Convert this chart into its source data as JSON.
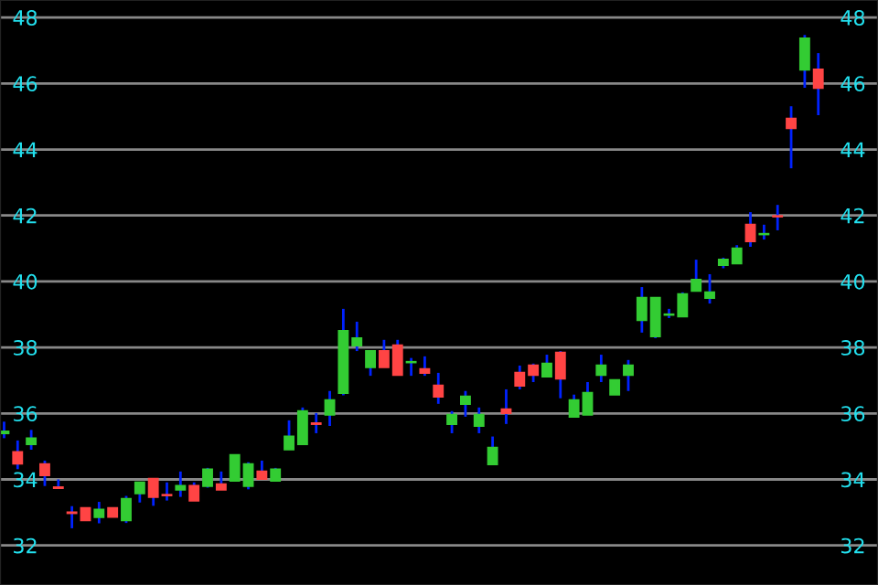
{
  "chart_data": {
    "type": "candlestick",
    "categories": [
      null,
      null,
      null,
      null,
      null,
      null,
      null,
      null,
      null,
      null,
      null,
      null,
      null,
      null,
      null,
      null,
      null,
      null,
      null,
      null,
      null,
      null,
      null,
      null,
      null,
      null,
      null,
      null,
      null,
      null,
      null,
      null,
      null,
      null,
      null,
      null,
      null,
      null,
      null,
      null,
      null,
      null,
      null,
      null,
      null,
      null,
      null,
      null,
      null,
      null,
      null,
      null,
      null,
      null,
      null,
      null,
      null,
      null,
      null,
      null,
      null
    ],
    "ohlc": [
      [
        35.4,
        35.75,
        35.25,
        35.45
      ],
      [
        34.83,
        35.18,
        34.31,
        34.48
      ],
      [
        35.07,
        35.5,
        34.9,
        35.24
      ],
      [
        34.46,
        34.57,
        33.8,
        34.13
      ],
      [
        33.76,
        34.0,
        33.74,
        33.74
      ],
      [
        33.0,
        33.19,
        32.52,
        32.98
      ],
      [
        33.13,
        33.13,
        32.76,
        32.76
      ],
      [
        32.86,
        33.32,
        32.67,
        33.08
      ],
      [
        33.13,
        33.13,
        32.87,
        32.87
      ],
      [
        32.76,
        33.5,
        32.68,
        33.41
      ],
      [
        33.58,
        33.91,
        33.3,
        33.91
      ],
      [
        34.02,
        34.02,
        33.2,
        33.47
      ],
      [
        33.53,
        33.91,
        33.36,
        33.52
      ],
      [
        33.69,
        34.24,
        33.47,
        33.8
      ],
      [
        33.8,
        33.91,
        33.36,
        33.36
      ],
      [
        33.8,
        34.35,
        33.75,
        34.3
      ],
      [
        33.85,
        34.24,
        33.69,
        33.69
      ],
      [
        33.96,
        34.74,
        33.96,
        34.74
      ],
      [
        33.8,
        34.52,
        33.7,
        34.46
      ],
      [
        34.24,
        34.57,
        34.02,
        34.02
      ],
      [
        33.96,
        34.35,
        33.96,
        34.3
      ],
      [
        34.91,
        35.79,
        34.91,
        35.3
      ],
      [
        35.07,
        36.18,
        35.07,
        36.07
      ],
      [
        35.7,
        36.01,
        35.4,
        35.68
      ],
      [
        35.96,
        36.68,
        35.62,
        36.4
      ],
      [
        36.62,
        39.17,
        36.55,
        38.5
      ],
      [
        38.06,
        38.78,
        37.89,
        38.28
      ],
      [
        37.4,
        37.89,
        37.14,
        37.89
      ],
      [
        37.89,
        38.23,
        37.4,
        37.4
      ],
      [
        38.06,
        38.23,
        37.17,
        37.17
      ],
      [
        37.55,
        37.68,
        37.14,
        37.56
      ],
      [
        37.34,
        37.73,
        37.14,
        37.23
      ],
      [
        36.84,
        37.23,
        36.29,
        36.51
      ],
      [
        35.68,
        36.07,
        35.4,
        35.96
      ],
      [
        36.29,
        36.68,
        35.9,
        36.51
      ],
      [
        35.62,
        36.18,
        35.4,
        35.96
      ],
      [
        34.46,
        35.3,
        34.46,
        34.96
      ],
      [
        36.12,
        36.73,
        35.68,
        36.01
      ],
      [
        37.23,
        37.45,
        36.73,
        36.84
      ],
      [
        37.45,
        37.51,
        36.95,
        37.17
      ],
      [
        37.12,
        37.78,
        37.12,
        37.51
      ],
      [
        37.84,
        37.89,
        36.46,
        37.06
      ],
      [
        35.9,
        36.57,
        35.9,
        36.4
      ],
      [
        35.96,
        36.95,
        35.96,
        36.62
      ],
      [
        37.17,
        37.78,
        36.95,
        37.45
      ],
      [
        36.57,
        37.01,
        36.57,
        37.01
      ],
      [
        37.17,
        37.62,
        36.68,
        37.45
      ],
      [
        38.83,
        39.83,
        38.45,
        39.5
      ],
      [
        38.34,
        39.5,
        38.28,
        39.5
      ],
      [
        38.99,
        39.17,
        38.89,
        39.0
      ],
      [
        38.94,
        39.67,
        38.94,
        39.61
      ],
      [
        39.72,
        40.66,
        39.72,
        40.05
      ],
      [
        39.5,
        40.22,
        39.33,
        39.67
      ],
      [
        40.5,
        40.72,
        40.4,
        40.66
      ],
      [
        40.55,
        41.1,
        40.55,
        41.0
      ],
      [
        41.72,
        42.1,
        41.05,
        41.22
      ],
      [
        41.43,
        41.72,
        41.27,
        41.44
      ],
      [
        41.98,
        42.32,
        41.55,
        41.97
      ],
      [
        44.93,
        45.31,
        43.43,
        44.65
      ],
      [
        46.42,
        47.47,
        45.87,
        47.36
      ],
      [
        46.42,
        46.92,
        45.04,
        45.87
      ]
    ],
    "colors": [
      "#33cc33",
      "#ff4444",
      "#33cc33",
      "#ff4444",
      "#ff4444",
      "#ff4444",
      "#ff4444",
      "#33cc33",
      "#ff4444",
      "#33cc33",
      "#33cc33",
      "#ff4444",
      "#ff4444",
      "#33cc33",
      "#ff4444",
      "#33cc33",
      "#ff4444",
      "#33cc33",
      "#33cc33",
      "#ff4444",
      "#33cc33",
      "#33cc33",
      "#33cc33",
      "#ff4444",
      "#33cc33",
      "#33cc33",
      "#33cc33",
      "#33cc33",
      "#ff4444",
      "#ff4444",
      "#33cc33",
      "#ff4444",
      "#ff4444",
      "#33cc33",
      "#33cc33",
      "#33cc33",
      "#33cc33",
      "#ff4444",
      "#ff4444",
      "#ff4444",
      "#33cc33",
      "#ff4444",
      "#33cc33",
      "#33cc33",
      "#33cc33",
      "#33cc33",
      "#33cc33",
      "#33cc33",
      "#33cc33",
      "#33cc33",
      "#33cc33",
      "#33cc33",
      "#33cc33",
      "#33cc33",
      "#33cc33",
      "#ff4444",
      "#33cc33",
      "#ff4444",
      "#ff4444",
      "#33cc33",
      "#ff4444"
    ],
    "ylim": [
      30.8,
      48.53
    ],
    "yticks": [
      32,
      34,
      36,
      38,
      40,
      42,
      44,
      46,
      48
    ],
    "y2lim": [
      30.8,
      48.53
    ],
    "y2ticks": [
      32,
      34,
      36,
      38,
      40,
      42,
      44,
      46,
      48
    ],
    "tick_labels": "y",
    "grid": "y"
  }
}
